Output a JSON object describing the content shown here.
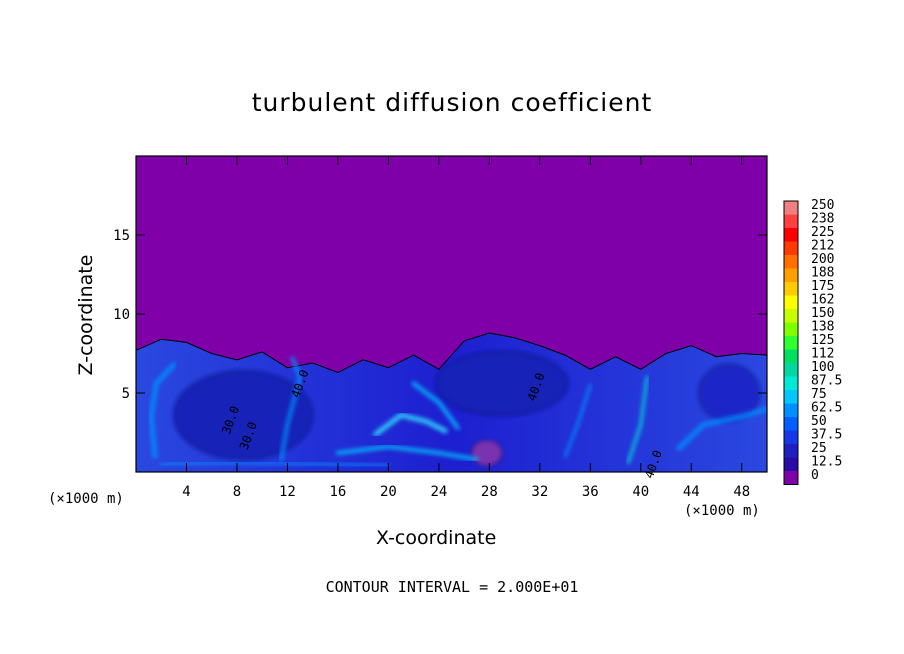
{
  "chart_data": {
    "type": "heatmap",
    "title": "turbulent diffusion coefficient",
    "xlabel": "X-coordinate",
    "ylabel": "Z-coordinate",
    "x_unit_label_left": "(×1000 m)",
    "x_unit_label_right": "(×1000 m)",
    "x_ticks": [
      4,
      8,
      12,
      16,
      20,
      24,
      28,
      32,
      36,
      40,
      44,
      48
    ],
    "xlim": [
      0,
      50
    ],
    "y_ticks": [
      5,
      10,
      15
    ],
    "ylim": [
      0,
      20
    ],
    "footer": "CONTOUR INTERVAL = 2.000E+01",
    "colorbar": {
      "labels": [
        "250",
        "238",
        "225",
        "212",
        "200",
        "188",
        "175",
        "162",
        "150",
        "138",
        "125",
        "112",
        "100",
        "87.5",
        "75",
        "62.5",
        "50",
        "37.5",
        "25",
        "12.5",
        "0"
      ],
      "colors": [
        "#f08080",
        "#ff4040",
        "#ff0000",
        "#ff3a00",
        "#ff7000",
        "#ffa000",
        "#ffcc00",
        "#ffff00",
        "#c8ff00",
        "#80ff00",
        "#30ff30",
        "#00e060",
        "#00d8a0",
        "#00e8d8",
        "#00c8ff",
        "#0090ff",
        "#0060ff",
        "#1838e8",
        "#2020c0",
        "#2a0ba8",
        "#7f00a8"
      ]
    },
    "background_color": "#7f00a8",
    "contour_labels": [
      {
        "text": "40.0",
        "x": 13.3,
        "z": 5.5
      },
      {
        "text": "30.0",
        "x": 7.8,
        "z": 3.2
      },
      {
        "text": "30.0",
        "x": 9.2,
        "z": 2.2
      },
      {
        "text": "40.0",
        "x": 32.0,
        "z": 5.3
      },
      {
        "text": "40.0",
        "x": 41.3,
        "z": 0.4
      }
    ],
    "turbulent_layer_top_z": [
      7.7,
      8.4,
      8.2,
      7.5,
      7.1,
      7.6,
      6.6,
      6.9,
      6.3,
      7.1,
      6.6,
      7.4,
      6.5,
      8.3,
      8.8,
      8.5,
      8.0,
      7.4,
      6.5,
      7.3,
      6.5,
      7.5,
      8.0,
      7.3,
      7.5,
      7.4
    ],
    "layer_x_positions": [
      0,
      2,
      4,
      6,
      8,
      10,
      12,
      14,
      16,
      18,
      20,
      22,
      24,
      26,
      28,
      30,
      32,
      34,
      36,
      38,
      40,
      42,
      44,
      46,
      48,
      50
    ]
  }
}
